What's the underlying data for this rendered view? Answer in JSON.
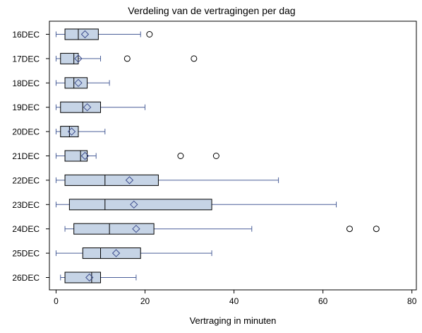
{
  "chart_data": {
    "type": "boxplot",
    "orientation": "horizontal",
    "title": "Verdeling van de vertragingen per dag",
    "xlabel": "Vertraging in minuten",
    "ylabel": "",
    "xlim": [
      -1.5,
      81
    ],
    "xticks": [
      0,
      20,
      40,
      60,
      80
    ],
    "grid": false,
    "colors": {
      "box_fill": "#c6d4e6",
      "box_stroke": "#000000",
      "whisker": "#4a5f99",
      "mean_marker": "#3f4f8f",
      "outlier": "#000000"
    },
    "categories": [
      "16DEC",
      "17DEC",
      "18DEC",
      "19DEC",
      "20DEC",
      "21DEC",
      "22DEC",
      "23DEC",
      "24DEC",
      "25DEC",
      "26DEC"
    ],
    "boxes": [
      {
        "label": "16DEC",
        "min": 0,
        "q1": 2,
        "median": 5,
        "mean": 6.5,
        "q3": 9.5,
        "max": 19,
        "outliers": [
          21
        ]
      },
      {
        "label": "17DEC",
        "min": 0,
        "q1": 1,
        "median": 4,
        "mean": 5,
        "q3": 5,
        "max": 10,
        "outliers": [
          16,
          31
        ]
      },
      {
        "label": "18DEC",
        "min": 0,
        "q1": 2,
        "median": 4,
        "mean": 5,
        "q3": 7,
        "max": 12,
        "outliers": []
      },
      {
        "label": "19DEC",
        "min": 0,
        "q1": 1,
        "median": 6,
        "mean": 7,
        "q3": 10,
        "max": 20,
        "outliers": []
      },
      {
        "label": "20DEC",
        "min": 0,
        "q1": 1,
        "median": 3,
        "mean": 3.5,
        "q3": 5,
        "max": 11,
        "outliers": []
      },
      {
        "label": "21DEC",
        "min": 0,
        "q1": 2,
        "median": 5.5,
        "mean": 6.5,
        "q3": 7,
        "max": 9,
        "outliers": [
          28,
          36
        ]
      },
      {
        "label": "22DEC",
        "min": 0,
        "q1": 2,
        "median": 11,
        "mean": 16.5,
        "q3": 23,
        "max": 50,
        "outliers": []
      },
      {
        "label": "23DEC",
        "min": 0,
        "q1": 3,
        "median": 11,
        "mean": 17.5,
        "q3": 35,
        "max": 63,
        "outliers": []
      },
      {
        "label": "24DEC",
        "min": 2,
        "q1": 4,
        "median": 12,
        "mean": 18,
        "q3": 22,
        "max": 44,
        "outliers": [
          66,
          72
        ]
      },
      {
        "label": "25DEC",
        "min": 0,
        "q1": 6,
        "median": 10,
        "mean": 13.5,
        "q3": 19,
        "max": 35,
        "outliers": []
      },
      {
        "label": "26DEC",
        "min": 1,
        "q1": 2,
        "median": 8,
        "mean": 7.5,
        "q3": 10,
        "max": 18,
        "outliers": []
      }
    ]
  }
}
